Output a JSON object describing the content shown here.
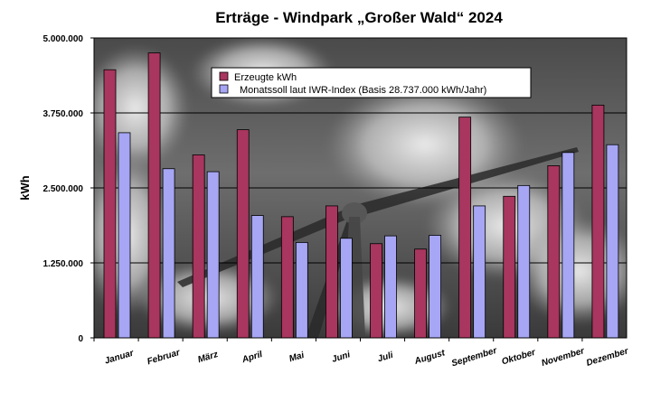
{
  "chart_data": {
    "type": "bar",
    "title": "Erträge - Windpark „Großer Wald“ 2024",
    "ylabel": "kWh",
    "xlabel": "",
    "ylim": [
      0,
      5000000
    ],
    "yticks": [
      0,
      1250000,
      2500000,
      3750000,
      5000000
    ],
    "ytick_labels": [
      "0",
      "1.250.000",
      "2.500.000",
      "3.750.000",
      "5.000.000"
    ],
    "grid": true,
    "legend_position": "top-center",
    "categories": [
      "Januar",
      "Februar",
      "März",
      "April",
      "Mai",
      "Juni",
      "Juli",
      "August",
      "September",
      "Oktober",
      "November",
      "Dezember"
    ],
    "series": [
      {
        "name": "Erzeugte kWh",
        "color": "#A8365E",
        "values": [
          4470000,
          4750000,
          3050000,
          3470000,
          2020000,
          2200000,
          1570000,
          1480000,
          3680000,
          2360000,
          2870000,
          3880000
        ]
      },
      {
        "name": "Monatssoll laut IWR-Index (Basis 28.737.000 kWh/Jahr)",
        "color": "#A6A6F4",
        "values": [
          3420000,
          2820000,
          2770000,
          2040000,
          1590000,
          1660000,
          1700000,
          1710000,
          2200000,
          2540000,
          3090000,
          3220000
        ]
      }
    ]
  }
}
